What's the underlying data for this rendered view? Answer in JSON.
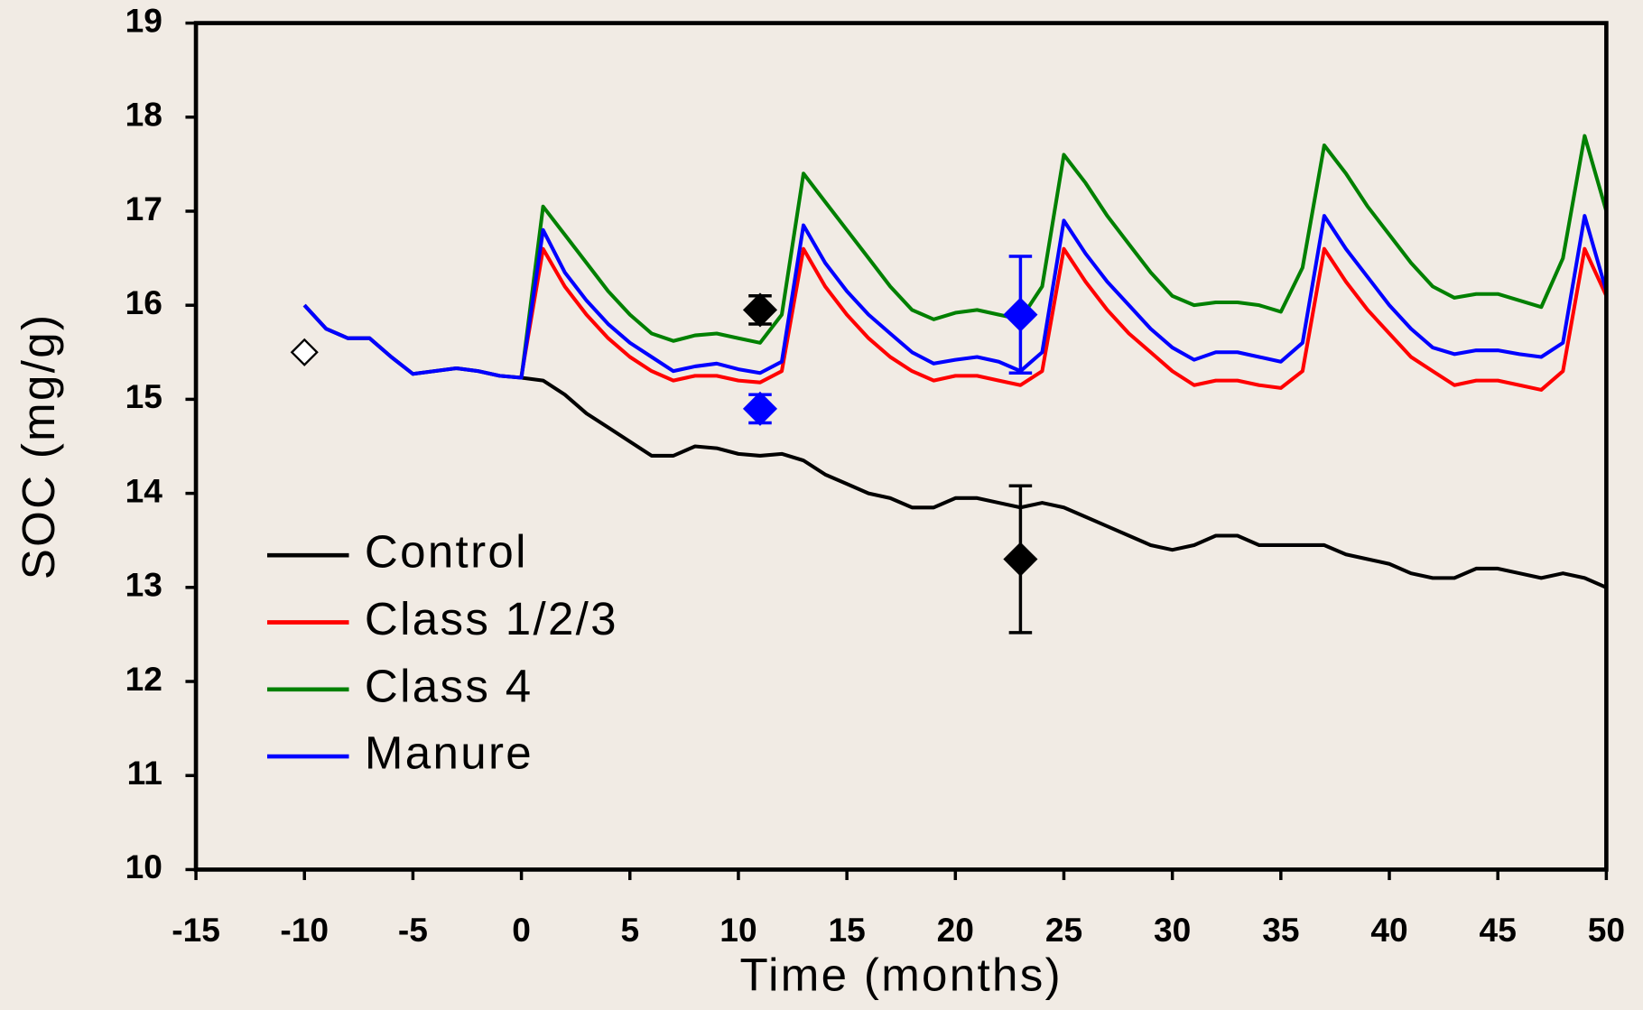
{
  "chart_data": {
    "type": "line",
    "x_label": "Time (months)",
    "y_label": "SOC (mg/g)",
    "xlim": [
      -15,
      50
    ],
    "ylim": [
      10,
      19
    ],
    "xticks": [
      -15,
      -10,
      -5,
      0,
      5,
      10,
      15,
      20,
      25,
      30,
      35,
      40,
      45,
      50
    ],
    "yticks": [
      10,
      11,
      12,
      13,
      14,
      15,
      16,
      17,
      18,
      19
    ],
    "series": [
      {
        "name": "Control",
        "color": "#000000",
        "x": [
          -10,
          -9,
          -8,
          -7,
          -6,
          -5,
          -4,
          -3,
          -2,
          -1,
          0,
          1,
          2,
          3,
          4,
          5,
          6,
          7,
          8,
          9,
          10,
          11,
          12,
          13,
          14,
          15,
          16,
          17,
          18,
          19,
          20,
          21,
          22,
          23,
          24,
          25,
          26,
          27,
          28,
          29,
          30,
          31,
          32,
          33,
          34,
          35,
          36,
          37,
          38,
          39,
          40,
          41,
          42,
          43,
          44,
          45,
          46,
          47,
          48,
          49,
          50
        ],
        "values": [
          16.0,
          15.75,
          15.65,
          15.65,
          15.45,
          15.27,
          15.3,
          15.33,
          15.3,
          15.25,
          15.23,
          15.2,
          15.05,
          14.85,
          14.7,
          14.55,
          14.4,
          14.4,
          14.5,
          14.48,
          14.42,
          14.4,
          14.42,
          14.35,
          14.2,
          14.1,
          14.0,
          13.95,
          13.85,
          13.85,
          13.95,
          13.95,
          13.9,
          13.85,
          13.9,
          13.85,
          13.75,
          13.65,
          13.55,
          13.45,
          13.4,
          13.45,
          13.55,
          13.55,
          13.45,
          13.45,
          13.45,
          13.45,
          13.35,
          13.3,
          13.25,
          13.15,
          13.1,
          13.1,
          13.2,
          13.2,
          13.15,
          13.1,
          13.15,
          13.1,
          13.0
        ]
      },
      {
        "name": "Class 1/2/3",
        "color": "#ff0000",
        "x": [
          0,
          1,
          2,
          3,
          4,
          5,
          6,
          7,
          8,
          9,
          10,
          11,
          12,
          13,
          14,
          15,
          16,
          17,
          18,
          19,
          20,
          21,
          22,
          23,
          24,
          25,
          26,
          27,
          28,
          29,
          30,
          31,
          32,
          33,
          34,
          35,
          36,
          37,
          38,
          39,
          40,
          41,
          42,
          43,
          44,
          45,
          46,
          47,
          48,
          49,
          50
        ],
        "values": [
          15.25,
          16.6,
          16.2,
          15.9,
          15.65,
          15.45,
          15.3,
          15.2,
          15.25,
          15.25,
          15.2,
          15.18,
          15.3,
          16.6,
          16.2,
          15.9,
          15.65,
          15.45,
          15.3,
          15.2,
          15.25,
          15.25,
          15.2,
          15.15,
          15.3,
          16.6,
          16.25,
          15.95,
          15.7,
          15.5,
          15.3,
          15.15,
          15.2,
          15.2,
          15.15,
          15.12,
          15.3,
          16.6,
          16.25,
          15.95,
          15.7,
          15.45,
          15.3,
          15.15,
          15.2,
          15.2,
          15.15,
          15.1,
          15.3,
          16.6,
          16.1
        ]
      },
      {
        "name": "Class 4",
        "color": "#008000",
        "x": [
          0,
          1,
          2,
          3,
          4,
          5,
          6,
          7,
          8,
          9,
          10,
          11,
          12,
          13,
          14,
          15,
          16,
          17,
          18,
          19,
          20,
          21,
          22,
          23,
          24,
          25,
          26,
          27,
          28,
          29,
          30,
          31,
          32,
          33,
          34,
          35,
          36,
          37,
          38,
          39,
          40,
          41,
          42,
          43,
          44,
          45,
          46,
          47,
          48,
          49,
          50
        ],
        "values": [
          15.23,
          17.05,
          16.75,
          16.45,
          16.15,
          15.9,
          15.7,
          15.62,
          15.68,
          15.7,
          15.65,
          15.6,
          15.9,
          17.4,
          17.1,
          16.8,
          16.5,
          16.2,
          15.95,
          15.85,
          15.92,
          15.95,
          15.9,
          15.85,
          16.2,
          17.6,
          17.3,
          16.95,
          16.65,
          16.35,
          16.1,
          16.0,
          16.03,
          16.03,
          16.0,
          15.93,
          16.4,
          17.7,
          17.4,
          17.05,
          16.75,
          16.45,
          16.2,
          16.08,
          16.12,
          16.12,
          16.05,
          15.98,
          16.5,
          17.8,
          17.0
        ]
      },
      {
        "name": "Manure",
        "color": "#0000ff",
        "x": [
          -10,
          -9,
          -8,
          -7,
          -6,
          -5,
          -4,
          -3,
          -2,
          -1,
          0,
          1,
          2,
          3,
          4,
          5,
          6,
          7,
          8,
          9,
          10,
          11,
          12,
          13,
          14,
          15,
          16,
          17,
          18,
          19,
          20,
          21,
          22,
          23,
          24,
          25,
          26,
          27,
          28,
          29,
          30,
          31,
          32,
          33,
          34,
          35,
          36,
          37,
          38,
          39,
          40,
          41,
          42,
          43,
          44,
          45,
          46,
          47,
          48,
          49,
          50
        ],
        "values": [
          16.0,
          15.75,
          15.65,
          15.65,
          15.45,
          15.27,
          15.3,
          15.33,
          15.3,
          15.25,
          15.23,
          16.8,
          16.35,
          16.05,
          15.8,
          15.6,
          15.45,
          15.3,
          15.35,
          15.38,
          15.32,
          15.28,
          15.4,
          16.85,
          16.45,
          16.15,
          15.9,
          15.7,
          15.5,
          15.38,
          15.42,
          15.45,
          15.4,
          15.3,
          15.5,
          16.9,
          16.55,
          16.25,
          16.0,
          15.75,
          15.55,
          15.42,
          15.5,
          15.5,
          15.45,
          15.4,
          15.6,
          16.95,
          16.6,
          16.3,
          16.0,
          15.75,
          15.55,
          15.48,
          15.52,
          15.52,
          15.48,
          15.45,
          15.6,
          16.95,
          16.15
        ]
      }
    ],
    "observations": [
      {
        "x": -10,
        "y": 15.5,
        "error": null,
        "color": "#000000",
        "filled": false
      },
      {
        "x": 11,
        "y": 15.95,
        "error": 0.15,
        "color": "#000000",
        "filled": true
      },
      {
        "x": 23,
        "y": 13.3,
        "error": 0.78,
        "color": "#000000",
        "filled": true
      },
      {
        "x": 11,
        "y": 14.9,
        "error": 0.15,
        "color": "#0000ff",
        "filled": true
      },
      {
        "x": 23,
        "y": 15.9,
        "error": 0.62,
        "color": "#0000ff",
        "filled": true
      }
    ]
  }
}
